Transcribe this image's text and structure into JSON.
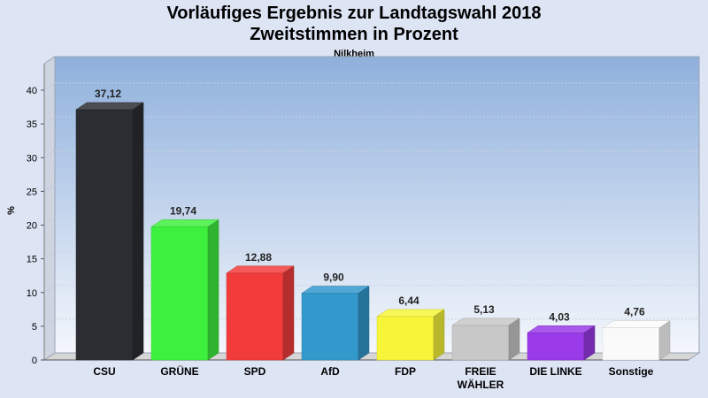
{
  "chart_data": {
    "type": "bar",
    "title": "Vorläufiges Ergebnis zur Landtagswahl 2018",
    "subtitle": "Zweitstimmen in Prozent",
    "location": "Nilkheim",
    "ylabel": "%",
    "ylim": [
      0,
      40
    ],
    "yticks": [
      "0",
      "5",
      "10",
      "15",
      "20",
      "25",
      "30",
      "35",
      "40"
    ],
    "categories": [
      "CSU",
      "GRÜNE",
      "SPD",
      "AfD",
      "FDP",
      "FREIE WÄHLER",
      "DIE LINKE",
      "Sonstige"
    ],
    "category_lines": [
      [
        "CSU"
      ],
      [
        "GRÜNE"
      ],
      [
        "SPD"
      ],
      [
        "AfD"
      ],
      [
        "FDP"
      ],
      [
        "FREIE",
        "WÄHLER"
      ],
      [
        "DIE LINKE"
      ],
      [
        "Sonstige"
      ]
    ],
    "values": [
      37.12,
      19.74,
      12.88,
      9.9,
      6.44,
      5.13,
      4.03,
      4.76
    ],
    "value_labels": [
      "37,12",
      "19,74",
      "12,88",
      "9,90",
      "6,44",
      "5,13",
      "4,03",
      "4,76"
    ],
    "colors": [
      "#2b2d33",
      "#3ef03e",
      "#f23c3c",
      "#3399cc",
      "#f7f53a",
      "#c8c8c8",
      "#9a3ae8",
      "#fafafa"
    ],
    "grid": true,
    "legend": "none"
  }
}
